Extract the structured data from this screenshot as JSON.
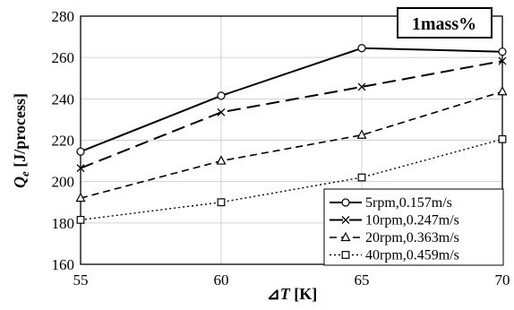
{
  "chart_data": {
    "type": "line",
    "badge": "1mass%",
    "xlabel_prefix": "⊿",
    "xlabel_var": "T",
    "xlabel_unit": " [K]",
    "ylabel_var": "Q",
    "ylabel_sub": "e",
    "ylabel_unit": " [J/process]",
    "x": [
      55,
      60,
      65,
      70
    ],
    "xlim": [
      55,
      70
    ],
    "ylim": [
      160,
      280
    ],
    "xticks": [
      "55",
      "60",
      "65",
      "70"
    ],
    "yticks": [
      "160",
      "180",
      "200",
      "220",
      "240",
      "260",
      "280"
    ],
    "grid": true,
    "legend_position": "bottom-right",
    "series": [
      {
        "name": "5rpm,0.157m/s",
        "values": [
          214.5,
          241.5,
          264.5,
          262.8
        ],
        "line": "solid",
        "marker": "circle"
      },
      {
        "name": "10rpm,0.247m/s",
        "values": [
          206.5,
          233.5,
          245.8,
          258.3
        ],
        "line": "longdash",
        "marker": "x"
      },
      {
        "name": "20rpm,0.363m/s",
        "values": [
          192,
          210,
          222.5,
          243.5
        ],
        "line": "dash",
        "marker": "triangle"
      },
      {
        "name": "40rpm,0.459m/s",
        "values": [
          181.5,
          190,
          202,
          220.5
        ],
        "line": "dot",
        "marker": "square"
      }
    ]
  }
}
